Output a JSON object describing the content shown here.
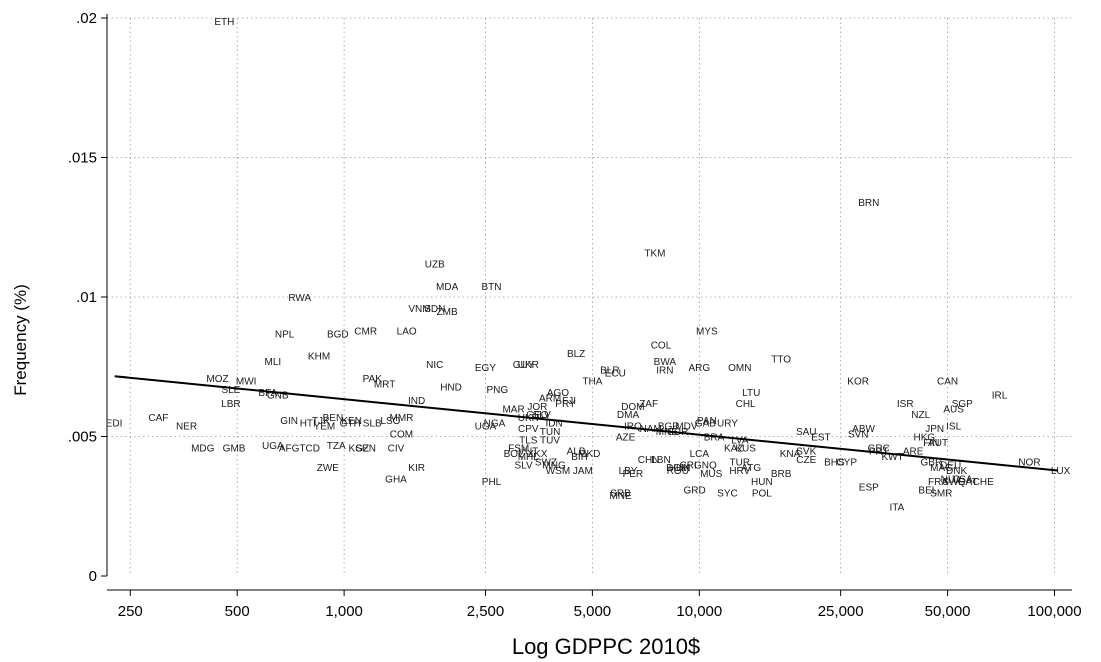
{
  "chart_data": {
    "type": "scatter",
    "title": "",
    "xlabel": "Log GDPPC 2010$",
    "ylabel": "Frequency (%)",
    "x_scale": "log",
    "xlim": [
      215,
      112000
    ],
    "ylim": [
      0,
      0.02
    ],
    "x_ticks": [
      250,
      500,
      1000,
      2500,
      5000,
      10000,
      25000,
      50000,
      100000
    ],
    "x_tick_labels": [
      "250",
      "500",
      "1,000",
      "2,500",
      "5,000",
      "10,000",
      "25,000",
      "50,000",
      "100,000"
    ],
    "y_ticks": [
      0,
      0.005,
      0.01,
      0.015,
      0.02
    ],
    "y_tick_labels": [
      "0",
      ".005",
      ".01",
      ".015",
      ".02"
    ],
    "grid": true,
    "fit_line": {
      "x": [
        226,
        102000
      ],
      "y": [
        0.00716,
        0.00378
      ]
    },
    "points": [
      {
        "label": "ETH",
        "x": 460,
        "y": 0.0199
      },
      {
        "label": "BRN",
        "x": 30000,
        "y": 0.0134
      },
      {
        "label": "TKM",
        "x": 7500,
        "y": 0.0116
      },
      {
        "label": "UZB",
        "x": 1800,
        "y": 0.0112
      },
      {
        "label": "MDA",
        "x": 1950,
        "y": 0.0104
      },
      {
        "label": "BTN",
        "x": 2600,
        "y": 0.0104
      },
      {
        "label": "RWA",
        "x": 750,
        "y": 0.01
      },
      {
        "label": "VNM",
        "x": 1630,
        "y": 0.0096
      },
      {
        "label": "SDN",
        "x": 1800,
        "y": 0.0096
      },
      {
        "label": "ZMB",
        "x": 1950,
        "y": 0.0095
      },
      {
        "label": "NPL",
        "x": 680,
        "y": 0.0087
      },
      {
        "label": "BGD",
        "x": 960,
        "y": 0.0087
      },
      {
        "label": "CMR",
        "x": 1150,
        "y": 0.0088
      },
      {
        "label": "LAO",
        "x": 1500,
        "y": 0.0088
      },
      {
        "label": "MYS",
        "x": 10500,
        "y": 0.0088
      },
      {
        "label": "COL",
        "x": 7800,
        "y": 0.0083
      },
      {
        "label": "KHM",
        "x": 850,
        "y": 0.0079
      },
      {
        "label": "BLZ",
        "x": 4500,
        "y": 0.008
      },
      {
        "label": "MLI",
        "x": 630,
        "y": 0.0077
      },
      {
        "label": "NIC",
        "x": 1800,
        "y": 0.0076
      },
      {
        "label": "EGY",
        "x": 2500,
        "y": 0.0075
      },
      {
        "label": "GUY",
        "x": 3200,
        "y": 0.0076
      },
      {
        "label": "UKR",
        "x": 3300,
        "y": 0.0076
      },
      {
        "label": "BWA",
        "x": 8000,
        "y": 0.0077
      },
      {
        "label": "TTO",
        "x": 17000,
        "y": 0.0078
      },
      {
        "label": "ARG",
        "x": 10000,
        "y": 0.0075
      },
      {
        "label": "OMN",
        "x": 13000,
        "y": 0.0075
      },
      {
        "label": "BLR",
        "x": 5600,
        "y": 0.0074
      },
      {
        "label": "ECU",
        "x": 5800,
        "y": 0.0073
      },
      {
        "label": "IRN",
        "x": 8000,
        "y": 0.0074
      },
      {
        "label": "THA",
        "x": 5000,
        "y": 0.007
      },
      {
        "label": "KOR",
        "x": 28000,
        "y": 0.007
      },
      {
        "label": "CAN",
        "x": 50000,
        "y": 0.007
      },
      {
        "label": "MOZ",
        "x": 440,
        "y": 0.0071
      },
      {
        "label": "MWI",
        "x": 530,
        "y": 0.007
      },
      {
        "label": "PAK",
        "x": 1200,
        "y": 0.0071
      },
      {
        "label": "MRT",
        "x": 1300,
        "y": 0.0069
      },
      {
        "label": "HND",
        "x": 2000,
        "y": 0.0068
      },
      {
        "label": "PNG",
        "x": 2700,
        "y": 0.0067
      },
      {
        "label": "SLE",
        "x": 480,
        "y": 0.0067
      },
      {
        "label": "BFA",
        "x": 610,
        "y": 0.0066
      },
      {
        "label": "GNB",
        "x": 650,
        "y": 0.0065
      },
      {
        "label": "AGO",
        "x": 4000,
        "y": 0.0066
      },
      {
        "label": "ARM",
        "x": 3800,
        "y": 0.0064
      },
      {
        "label": "LTU",
        "x": 14000,
        "y": 0.0066
      },
      {
        "label": "IRL",
        "x": 70000,
        "y": 0.0065
      },
      {
        "label": "LBR",
        "x": 480,
        "y": 0.0062
      },
      {
        "label": "IND",
        "x": 1600,
        "y": 0.0063
      },
      {
        "label": "ZAF",
        "x": 7200,
        "y": 0.0062
      },
      {
        "label": "CHL",
        "x": 13500,
        "y": 0.0062
      },
      {
        "label": "ISR",
        "x": 38000,
        "y": 0.0062
      },
      {
        "label": "SGP",
        "x": 55000,
        "y": 0.0062
      },
      {
        "label": "JOR",
        "x": 3500,
        "y": 0.0061
      },
      {
        "label": "FJI",
        "x": 4300,
        "y": 0.0063
      },
      {
        "label": "PRY",
        "x": 4200,
        "y": 0.0062
      },
      {
        "label": "DOM",
        "x": 6500,
        "y": 0.0061
      },
      {
        "label": "MAR",
        "x": 3000,
        "y": 0.006
      },
      {
        "label": "AUS",
        "x": 52000,
        "y": 0.006
      },
      {
        "label": "NZL",
        "x": 42000,
        "y": 0.0058
      },
      {
        "label": "DMA",
        "x": 6300,
        "y": 0.0058
      },
      {
        "label": "GEO",
        "x": 3500,
        "y": 0.0058
      },
      {
        "label": "UKR",
        "x": 3300,
        "y": 0.0057
      },
      {
        "label": "SLV",
        "x": 3600,
        "y": 0.0058
      },
      {
        "label": "CAF",
        "x": 300,
        "y": 0.0057
      },
      {
        "label": "EDI",
        "x": 225,
        "y": 0.0055
      },
      {
        "label": "GIN",
        "x": 700,
        "y": 0.0056
      },
      {
        "label": "TJK",
        "x": 860,
        "y": 0.0056
      },
      {
        "label": "BEN",
        "x": 930,
        "y": 0.0057
      },
      {
        "label": "HTI",
        "x": 790,
        "y": 0.0055
      },
      {
        "label": "YEM",
        "x": 880,
        "y": 0.0054
      },
      {
        "label": "KEN",
        "x": 1050,
        "y": 0.0056
      },
      {
        "label": "GTH",
        "x": 1040,
        "y": 0.0055
      },
      {
        "label": "SLB",
        "x": 1200,
        "y": 0.0055
      },
      {
        "label": "LSO",
        "x": 1350,
        "y": 0.0056
      },
      {
        "label": "MMR",
        "x": 1450,
        "y": 0.0057
      },
      {
        "label": "UGA",
        "x": 2500,
        "y": 0.0054
      },
      {
        "label": "NGA",
        "x": 2650,
        "y": 0.0055
      },
      {
        "label": "IDN",
        "x": 3900,
        "y": 0.0055
      },
      {
        "label": "IRQ",
        "x": 6500,
        "y": 0.0054
      },
      {
        "label": "NAM",
        "x": 7300,
        "y": 0.0053
      },
      {
        "label": "PAN",
        "x": 10500,
        "y": 0.0056
      },
      {
        "label": "GAB",
        "x": 10400,
        "y": 0.0055
      },
      {
        "label": "URY",
        "x": 12000,
        "y": 0.0055
      },
      {
        "label": "BGR",
        "x": 8200,
        "y": 0.0054
      },
      {
        "label": "MDV",
        "x": 9200,
        "y": 0.0054
      },
      {
        "label": "ISL",
        "x": 52000,
        "y": 0.0054
      },
      {
        "label": "JPN",
        "x": 46000,
        "y": 0.0053
      },
      {
        "label": "ABW",
        "x": 29000,
        "y": 0.0053
      },
      {
        "label": "NER",
        "x": 360,
        "y": 0.0054
      },
      {
        "label": "TUN",
        "x": 3800,
        "y": 0.0052
      },
      {
        "label": "CPV",
        "x": 3300,
        "y": 0.0053
      },
      {
        "label": "MNE",
        "x": 8100,
        "y": 0.0052
      },
      {
        "label": "SUR",
        "x": 8700,
        "y": 0.0052
      },
      {
        "label": "SAU",
        "x": 20000,
        "y": 0.0052
      },
      {
        "label": "EST",
        "x": 22000,
        "y": 0.005
      },
      {
        "label": "SVN",
        "x": 28000,
        "y": 0.0051
      },
      {
        "label": "HKG",
        "x": 43000,
        "y": 0.005
      },
      {
        "label": "COM",
        "x": 1450,
        "y": 0.0051
      },
      {
        "label": "AZE",
        "x": 6200,
        "y": 0.005
      },
      {
        "label": "BRA",
        "x": 11000,
        "y": 0.005
      },
      {
        "label": "TLS",
        "x": 3300,
        "y": 0.0049
      },
      {
        "label": "TUV",
        "x": 3800,
        "y": 0.0049
      },
      {
        "label": "LVA",
        "x": 13000,
        "y": 0.0049
      },
      {
        "label": "FIN",
        "x": 45000,
        "y": 0.0048
      },
      {
        "label": "AUT",
        "x": 47000,
        "y": 0.0048
      },
      {
        "label": "MDG",
        "x": 400,
        "y": 0.0046
      },
      {
        "label": "GMB",
        "x": 490,
        "y": 0.0046
      },
      {
        "label": "UGA",
        "x": 630,
        "y": 0.0047
      },
      {
        "label": "AFG",
        "x": 700,
        "y": 0.0046
      },
      {
        "label": "TCD",
        "x": 800,
        "y": 0.0046
      },
      {
        "label": "TZA",
        "x": 950,
        "y": 0.0047
      },
      {
        "label": "KGZ",
        "x": 1100,
        "y": 0.0046
      },
      {
        "label": "SEN",
        "x": 1150,
        "y": 0.0046
      },
      {
        "label": "CIV",
        "x": 1400,
        "y": 0.0046
      },
      {
        "label": "FSM",
        "x": 3100,
        "y": 0.0046
      },
      {
        "label": "VUT",
        "x": 3300,
        "y": 0.0045
      },
      {
        "label": "ALB",
        "x": 4500,
        "y": 0.0045
      },
      {
        "label": "KAZ",
        "x": 12500,
        "y": 0.0046
      },
      {
        "label": "KUS",
        "x": 13500,
        "y": 0.0046
      },
      {
        "label": "GRC",
        "x": 32000,
        "y": 0.0046
      },
      {
        "label": "PRT",
        "x": 32000,
        "y": 0.0045
      },
      {
        "label": "ARE",
        "x": 40000,
        "y": 0.0045
      },
      {
        "label": "BOL",
        "x": 3000,
        "y": 0.0044
      },
      {
        "label": "XKX",
        "x": 3500,
        "y": 0.0044
      },
      {
        "label": "MKD",
        "x": 4900,
        "y": 0.0044
      },
      {
        "label": "LCA",
        "x": 10000,
        "y": 0.0044
      },
      {
        "label": "KNA",
        "x": 18000,
        "y": 0.0044
      },
      {
        "label": "SVK",
        "x": 20000,
        "y": 0.0045
      },
      {
        "label": "MHL",
        "x": 3300,
        "y": 0.0043
      },
      {
        "label": "BIH",
        "x": 4600,
        "y": 0.0043
      },
      {
        "label": "KWT",
        "x": 35000,
        "y": 0.0043
      },
      {
        "label": "CHN",
        "x": 7200,
        "y": 0.0042
      },
      {
        "label": "LBN",
        "x": 7800,
        "y": 0.0042
      },
      {
        "label": "CZE",
        "x": 20000,
        "y": 0.0042
      },
      {
        "label": "TUR",
        "x": 13000,
        "y": 0.0041
      },
      {
        "label": "BHS",
        "x": 24000,
        "y": 0.0041
      },
      {
        "label": "CYP",
        "x": 26000,
        "y": 0.0041
      },
      {
        "label": "GBR",
        "x": 45000,
        "y": 0.0041
      },
      {
        "label": "NOR",
        "x": 85000,
        "y": 0.0041
      },
      {
        "label": "SWZ",
        "x": 3700,
        "y": 0.0041
      },
      {
        "label": "SLV",
        "x": 3200,
        "y": 0.004
      },
      {
        "label": "MNG",
        "x": 3900,
        "y": 0.004
      },
      {
        "label": "CRI",
        "x": 9300,
        "y": 0.004
      },
      {
        "label": "GNQ",
        "x": 10400,
        "y": 0.004
      },
      {
        "label": "DOM",
        "x": 8700,
        "y": 0.0039
      },
      {
        "label": "ATG",
        "x": 14000,
        "y": 0.0039
      },
      {
        "label": "MAC",
        "x": 48000,
        "y": 0.0039
      },
      {
        "label": "DEU",
        "x": 51000,
        "y": 0.004
      },
      {
        "label": "ZWE",
        "x": 900,
        "y": 0.0039
      },
      {
        "label": "KIR",
        "x": 1600,
        "y": 0.0039
      },
      {
        "label": "WSM",
        "x": 4000,
        "y": 0.0038
      },
      {
        "label": "JAM",
        "x": 4700,
        "y": 0.0038
      },
      {
        "label": "LBY",
        "x": 6300,
        "y": 0.0038
      },
      {
        "label": "ROU",
        "x": 8700,
        "y": 0.0038
      },
      {
        "label": "HRV",
        "x": 13000,
        "y": 0.0038
      },
      {
        "label": "DNK",
        "x": 53000,
        "y": 0.0038
      },
      {
        "label": "LUX",
        "x": 104000,
        "y": 0.0038
      },
      {
        "label": "PER",
        "x": 6500,
        "y": 0.0037
      },
      {
        "label": "MUS",
        "x": 10800,
        "y": 0.0037
      },
      {
        "label": "BRB",
        "x": 17000,
        "y": 0.0037
      },
      {
        "label": "GHA",
        "x": 1400,
        "y": 0.0035
      },
      {
        "label": "NLD",
        "x": 51000,
        "y": 0.0035
      },
      {
        "label": "USA",
        "x": 55000,
        "y": 0.0035
      },
      {
        "label": "FRA",
        "x": 47000,
        "y": 0.0034
      },
      {
        "label": "SWE",
        "x": 52000,
        "y": 0.0034
      },
      {
        "label": "QAT",
        "x": 57000,
        "y": 0.0034
      },
      {
        "label": "CHE",
        "x": 63000,
        "y": 0.0034
      },
      {
        "label": "PHL",
        "x": 2600,
        "y": 0.0034
      },
      {
        "label": "HUN",
        "x": 15000,
        "y": 0.0034
      },
      {
        "label": "ESP",
        "x": 30000,
        "y": 0.0032
      },
      {
        "label": "GRD",
        "x": 9700,
        "y": 0.0031
      },
      {
        "label": "POL",
        "x": 15000,
        "y": 0.003
      },
      {
        "label": "BEL",
        "x": 44000,
        "y": 0.0031
      },
      {
        "label": "SMR",
        "x": 48000,
        "y": 0.003
      },
      {
        "label": "SYC",
        "x": 12000,
        "y": 0.003
      },
      {
        "label": "SRB",
        "x": 6000,
        "y": 0.003
      },
      {
        "label": "MNE",
        "x": 6000,
        "y": 0.0029
      },
      {
        "label": "ITA",
        "x": 36000,
        "y": 0.0025
      },
      {
        "label": "HUN",
        "x": 8800,
        "y": 0.0039
      }
    ]
  }
}
